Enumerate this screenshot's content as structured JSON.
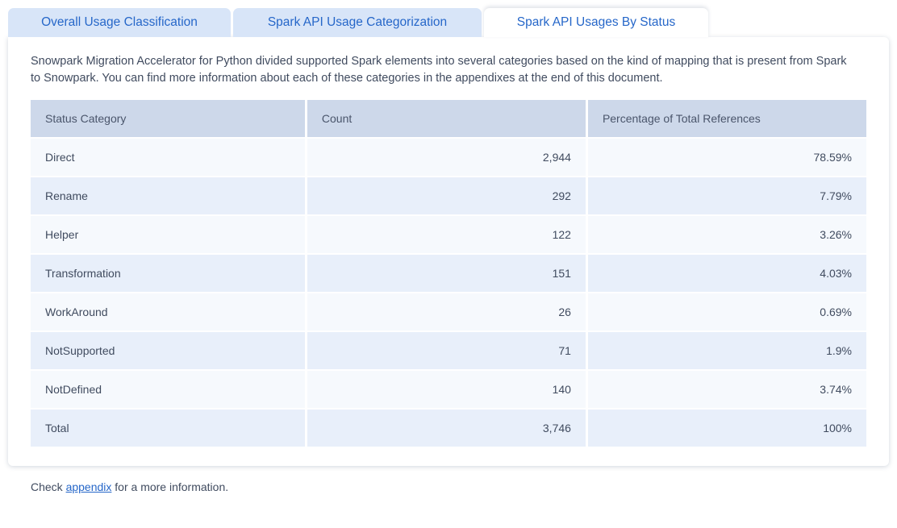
{
  "tabs": [
    {
      "label": "Overall Usage Classification",
      "active": false
    },
    {
      "label": "Spark API Usage Categorization",
      "active": false
    },
    {
      "label": "Spark API Usages By Status",
      "active": true
    }
  ],
  "panel": {
    "description": "Snowpark Migration Accelerator for Python divided supported Spark elements into several categories based on the kind of mapping that is present from Spark to Snowpark. You can find more information about each of these categories in the appendixes at the end of this document."
  },
  "table": {
    "headers": [
      "Status Category",
      "Count",
      "Percentage of Total References"
    ],
    "rows": [
      {
        "category": "Direct",
        "count": "2,944",
        "percentage": "78.59%"
      },
      {
        "category": "Rename",
        "count": "292",
        "percentage": "7.79%"
      },
      {
        "category": "Helper",
        "count": "122",
        "percentage": "3.26%"
      },
      {
        "category": "Transformation",
        "count": "151",
        "percentage": "4.03%"
      },
      {
        "category": "WorkAround",
        "count": "26",
        "percentage": "0.69%"
      },
      {
        "category": "NotSupported",
        "count": "71",
        "percentage": "1.9%"
      },
      {
        "category": "NotDefined",
        "count": "140",
        "percentage": "3.74%"
      },
      {
        "category": "Total",
        "count": "3,746",
        "percentage": "100%"
      }
    ]
  },
  "footer": {
    "prefix": "Check ",
    "link_label": "appendix",
    "suffix": " for a more information."
  },
  "colors": {
    "accent_blue": "#2667c9",
    "tab_inactive_bg": "#d8e5f8",
    "table_header_bg": "#cdd8ea",
    "row_light": "#f6f9fd",
    "row_blue": "#e8effa",
    "text": "#404b5f"
  }
}
